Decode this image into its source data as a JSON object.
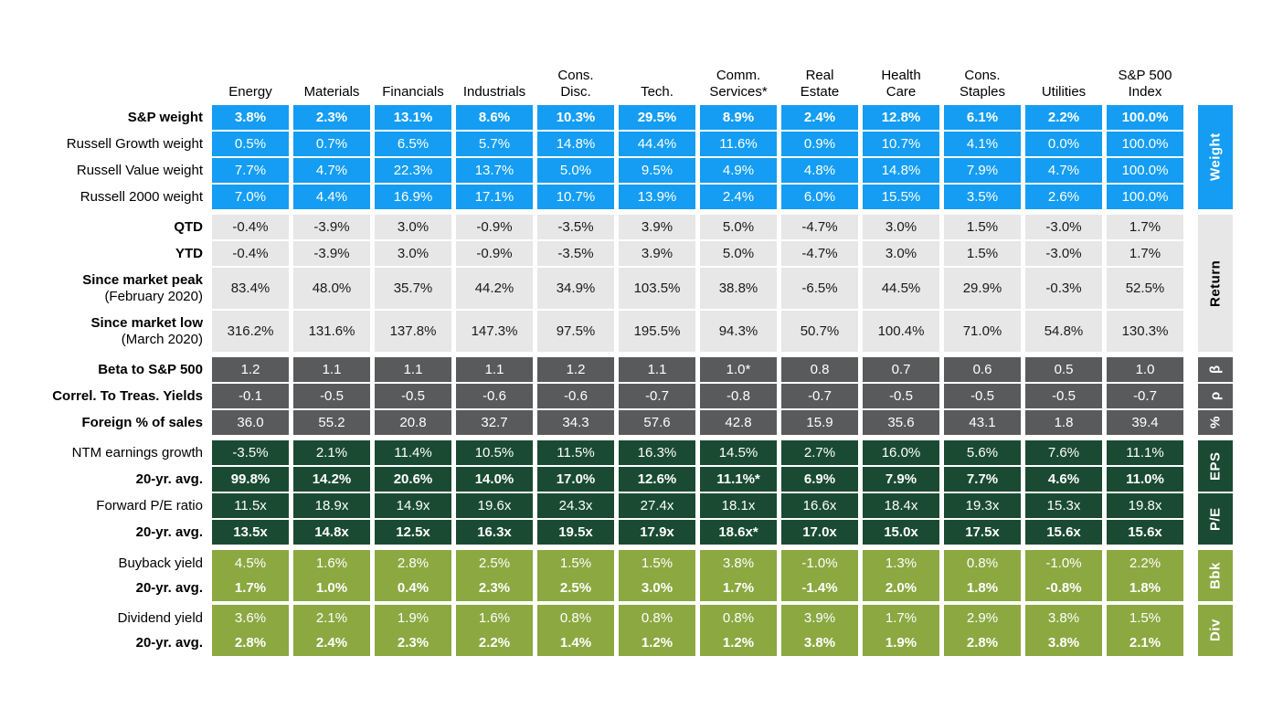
{
  "colors": {
    "blue": "#149DF2",
    "gray": "#E7E7E7",
    "darkgray": "#595A5C",
    "darkgreen": "#1A4B32",
    "olive": "#8CA841"
  },
  "columns": [
    "Energy",
    "Materials",
    "Financials",
    "Industrials",
    "Cons.\nDisc.",
    "Tech.",
    "Comm.\nServices*",
    "Real\nEstate",
    "Health\nCare",
    "Cons.\nStaples",
    "Utilities",
    "S&P 500\nIndex"
  ],
  "groups": [
    {
      "name": "weight",
      "side_label": "Weight",
      "style": "blue",
      "rows": [
        {
          "label": "S&P weight",
          "label_bold": true,
          "values_bold": true,
          "values": [
            "3.8%",
            "2.3%",
            "13.1%",
            "8.6%",
            "10.3%",
            "29.5%",
            "8.9%",
            "2.4%",
            "12.8%",
            "6.1%",
            "2.2%",
            "100.0%"
          ]
        },
        {
          "label": "Russell Growth weight",
          "values": [
            "0.5%",
            "0.7%",
            "6.5%",
            "5.7%",
            "14.8%",
            "44.4%",
            "11.6%",
            "0.9%",
            "10.7%",
            "4.1%",
            "0.0%",
            "100.0%"
          ]
        },
        {
          "label": "Russell Value weight",
          "values": [
            "7.7%",
            "4.7%",
            "22.3%",
            "13.7%",
            "5.0%",
            "9.5%",
            "4.9%",
            "4.8%",
            "14.8%",
            "7.9%",
            "4.7%",
            "100.0%"
          ]
        },
        {
          "label": "Russell 2000 weight",
          "values": [
            "7.0%",
            "4.4%",
            "16.9%",
            "17.1%",
            "10.7%",
            "13.9%",
            "2.4%",
            "6.0%",
            "15.5%",
            "3.5%",
            "2.6%",
            "100.0%"
          ]
        }
      ]
    },
    {
      "name": "return",
      "side_label": "Return",
      "style": "gray",
      "rows": [
        {
          "label": "QTD",
          "label_bold": true,
          "values": [
            "-0.4%",
            "-3.9%",
            "3.0%",
            "-0.9%",
            "-3.5%",
            "3.9%",
            "5.0%",
            "-4.7%",
            "3.0%",
            "1.5%",
            "-3.0%",
            "1.7%"
          ]
        },
        {
          "label": "YTD",
          "label_bold": true,
          "values": [
            "-0.4%",
            "-3.9%",
            "3.0%",
            "-0.9%",
            "-3.5%",
            "3.9%",
            "5.0%",
            "-4.7%",
            "3.0%",
            "1.5%",
            "-3.0%",
            "1.7%"
          ]
        },
        {
          "label": "Since market peak",
          "sublabel": "(February 2020)",
          "label_bold": true,
          "tall": true,
          "values": [
            "83.4%",
            "48.0%",
            "35.7%",
            "44.2%",
            "34.9%",
            "103.5%",
            "38.8%",
            "-6.5%",
            "44.5%",
            "29.9%",
            "-0.3%",
            "52.5%"
          ]
        },
        {
          "label": "Since market low",
          "sublabel": "(March 2020)",
          "label_bold": true,
          "tall": true,
          "values": [
            "316.2%",
            "131.6%",
            "137.8%",
            "147.3%",
            "97.5%",
            "195.5%",
            "94.3%",
            "50.7%",
            "100.4%",
            "71.0%",
            "54.8%",
            "130.3%"
          ]
        }
      ]
    },
    {
      "name": "beta",
      "side_label": "β",
      "style": "darkgray",
      "rows": [
        {
          "label": "Beta to S&P 500",
          "label_bold": true,
          "values": [
            "1.2",
            "1.1",
            "1.1",
            "1.1",
            "1.2",
            "1.1",
            "1.0*",
            "0.8",
            "0.7",
            "0.6",
            "0.5",
            "1.0"
          ]
        }
      ]
    },
    {
      "name": "correl",
      "side_label": "ρ",
      "style": "darkgray",
      "rows": [
        {
          "label": "Correl. To Treas. Yields",
          "label_bold": true,
          "values": [
            "-0.1",
            "-0.5",
            "-0.5",
            "-0.6",
            "-0.6",
            "-0.7",
            "-0.8",
            "-0.7",
            "-0.5",
            "-0.5",
            "-0.5",
            "-0.7"
          ]
        }
      ]
    },
    {
      "name": "foreign",
      "side_label": "%",
      "style": "darkgray",
      "rows": [
        {
          "label": "Foreign % of sales",
          "label_bold": true,
          "values": [
            "36.0",
            "55.2",
            "20.8",
            "32.7",
            "34.3",
            "57.6",
            "42.8",
            "15.9",
            "35.6",
            "43.1",
            "1.8",
            "39.4"
          ]
        }
      ]
    },
    {
      "name": "eps",
      "side_label": "EPS",
      "style": "darkgreen",
      "rows": [
        {
          "label": "NTM earnings growth",
          "values": [
            "-3.5%",
            "2.1%",
            "11.4%",
            "10.5%",
            "11.5%",
            "16.3%",
            "14.5%",
            "2.7%",
            "16.0%",
            "5.6%",
            "7.6%",
            "11.1%"
          ]
        },
        {
          "label": "20-yr. avg.",
          "label_bold": true,
          "values_bold": true,
          "values": [
            "99.8%",
            "14.2%",
            "20.6%",
            "14.0%",
            "17.0%",
            "12.6%",
            "11.1%*",
            "6.9%",
            "7.9%",
            "7.7%",
            "4.6%",
            "11.0%"
          ]
        }
      ]
    },
    {
      "name": "pe",
      "side_label": "P/E",
      "style": "darkgreen",
      "rows": [
        {
          "label": "Forward P/E ratio",
          "values": [
            "11.5x",
            "18.9x",
            "14.9x",
            "19.6x",
            "24.3x",
            "27.4x",
            "18.1x",
            "16.6x",
            "18.4x",
            "19.3x",
            "15.3x",
            "19.8x"
          ]
        },
        {
          "label": "20-yr. avg.",
          "label_bold": true,
          "values_bold": true,
          "values": [
            "13.5x",
            "14.8x",
            "12.5x",
            "16.3x",
            "19.5x",
            "17.9x",
            "18.6x*",
            "17.0x",
            "15.0x",
            "17.5x",
            "15.6x",
            "15.6x"
          ]
        }
      ]
    },
    {
      "name": "buyback",
      "side_label": "Bbk",
      "style": "olive",
      "rows": [
        {
          "label": "Buyback yield",
          "label2": "20-yr. avg.",
          "dual": true,
          "values": [
            "4.5%",
            "1.6%",
            "2.8%",
            "2.5%",
            "1.5%",
            "1.5%",
            "3.8%",
            "-1.0%",
            "1.3%",
            "0.8%",
            "-1.0%",
            "2.2%"
          ],
          "values2": [
            "1.7%",
            "1.0%",
            "0.4%",
            "2.3%",
            "2.5%",
            "3.0%",
            "1.7%",
            "-1.4%",
            "2.0%",
            "1.8%",
            "-0.8%",
            "1.8%"
          ]
        }
      ]
    },
    {
      "name": "dividend",
      "side_label": "Div",
      "style": "olive",
      "rows": [
        {
          "label": "Dividend yield",
          "label2": "20-yr. avg.",
          "dual": true,
          "values": [
            "3.6%",
            "2.1%",
            "1.9%",
            "1.6%",
            "0.8%",
            "0.8%",
            "0.8%",
            "3.9%",
            "1.7%",
            "2.9%",
            "3.8%",
            "1.5%"
          ],
          "values2": [
            "2.8%",
            "2.4%",
            "2.3%",
            "2.2%",
            "1.4%",
            "1.2%",
            "1.2%",
            "3.8%",
            "1.9%",
            "2.8%",
            "3.8%",
            "2.1%"
          ]
        }
      ]
    }
  ]
}
